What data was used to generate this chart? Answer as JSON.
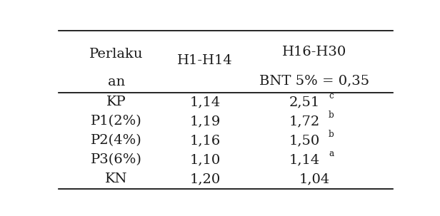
{
  "rows": [
    {
      "label": "KP",
      "h1h14": "1,14",
      "h16h30": "2,51",
      "superscript": "c"
    },
    {
      "label": "P1(2%)",
      "h1h14": "1,19",
      "h16h30": "1,72",
      "superscript": "b"
    },
    {
      "label": "P2(4%)",
      "h1h14": "1,16",
      "h16h30": "1,50",
      "superscript": "b"
    },
    {
      "label": "P3(6%)",
      "h1h14": "1,10",
      "h16h30": "1,14",
      "superscript": "a"
    },
    {
      "label": "KN",
      "h1h14": "1,20",
      "h16h30": "1,04",
      "superscript": ""
    }
  ],
  "header_col0_line1": "Perlaku",
  "header_col0_line2": "an",
  "header_col1": "H1-H14",
  "header_col2_line1": "H16-H30",
  "header_col2_line2": "BNT 5% = 0,35",
  "background_color": "#ffffff",
  "text_color": "#1a1a1a",
  "line_color": "#000000",
  "font_size": 14
}
